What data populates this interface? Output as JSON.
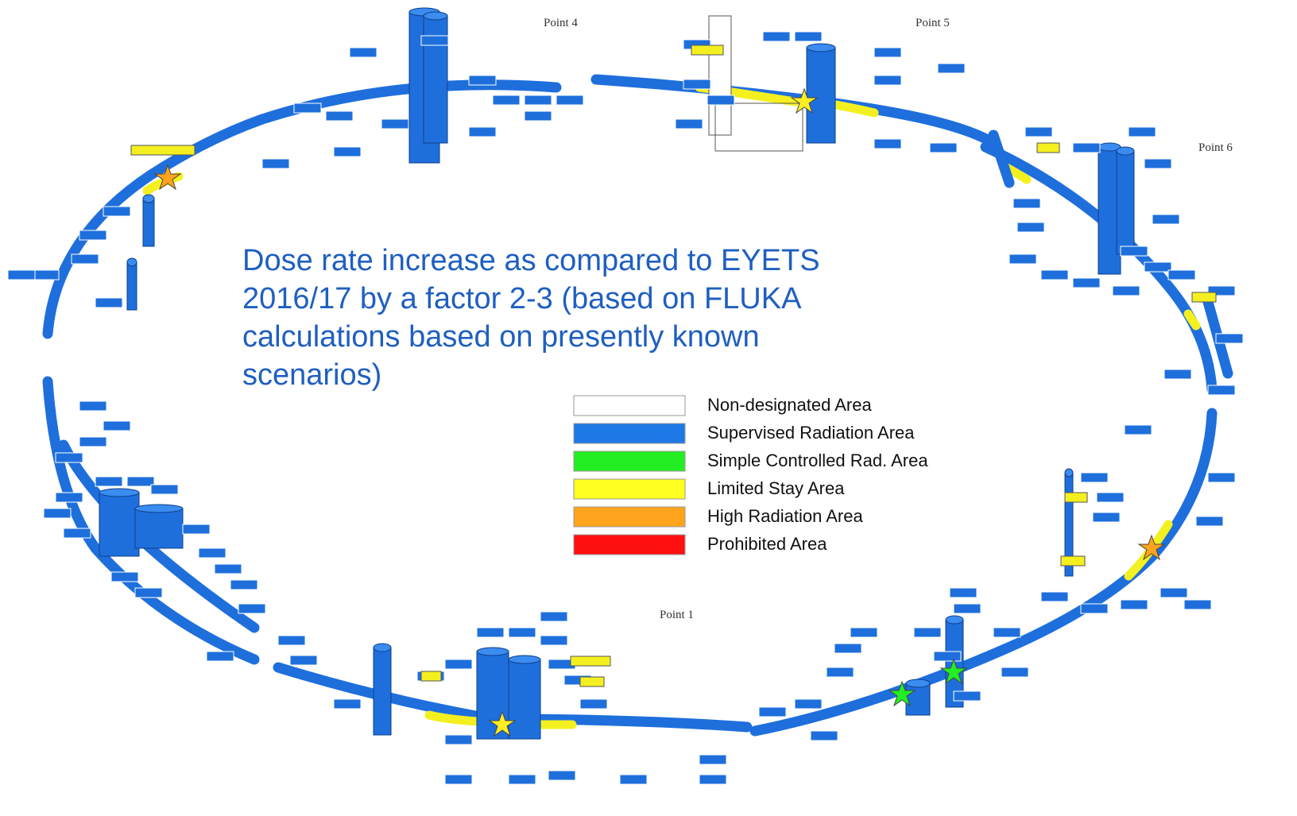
{
  "points": {
    "p4": "Point 4",
    "p5": "Point 5",
    "p6": "Point 6",
    "p1": "Point 1"
  },
  "description": {
    "lines": [
      "Dose rate increase as compared to EYETS",
      "2016/17 by a factor 2-3 (based on FLUKA",
      "calculations based on presently known",
      "scenarios)"
    ]
  },
  "legend": {
    "items": [
      {
        "label": "Non-designated Area",
        "color": "#ffffff"
      },
      {
        "label": "Supervised Radiation Area",
        "color": "#1e78e6"
      },
      {
        "label": "Simple Controlled Rad. Area",
        "color": "#22ee22"
      },
      {
        "label": "Limited Stay Area",
        "color": "#ffff22"
      },
      {
        "label": "High Radiation Area",
        "color": "#ffa41c"
      },
      {
        "label": "Prohibited Area",
        "color": "#ff1010"
      }
    ]
  }
}
